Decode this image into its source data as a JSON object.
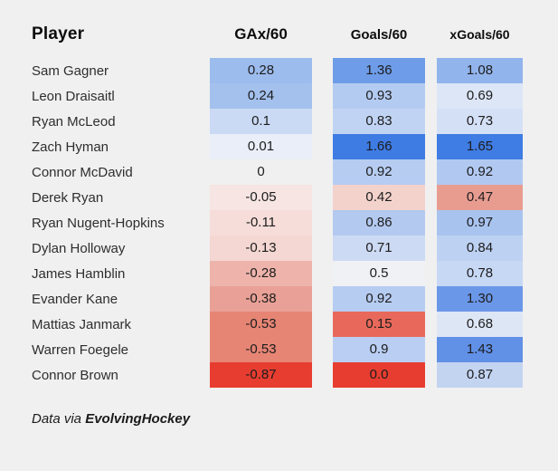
{
  "page": {
    "background": "#f0f0f0"
  },
  "header": {
    "player_label": "Player",
    "columns": [
      {
        "label": "GAx/60"
      },
      {
        "label": "Goals/60"
      },
      {
        "label": "xGoals/60"
      }
    ]
  },
  "footer": {
    "prefix": "Data via ",
    "source": "EvolvingHockey"
  },
  "chart_data": {
    "type": "table",
    "title": "",
    "columns": [
      "Player",
      "GAx/60",
      "Goals/60",
      "xGoals/60"
    ],
    "color_scale": {
      "style": "diverging red-white-blue heatmap per column",
      "strong_blue": "#3e7be3",
      "strong_red": "#e73d30",
      "neutral": "#f0f1f5"
    },
    "rows": [
      {
        "player": "Sam Gagner",
        "gax": {
          "value": "0.28",
          "color": "#9dbcee"
        },
        "goals": {
          "value": "1.36",
          "color": "#6e9ce8"
        },
        "xgoals": {
          "value": "1.08",
          "color": "#92b4ec"
        }
      },
      {
        "player": "Leon Draisaitl",
        "gax": {
          "value": "0.24",
          "color": "#a4c1ee"
        },
        "goals": {
          "value": "0.93",
          "color": "#b4cbf1"
        },
        "xgoals": {
          "value": "0.69",
          "color": "#dce6f7"
        }
      },
      {
        "player": "Ryan McLeod",
        "gax": {
          "value": "0.1",
          "color": "#cbdaf4"
        },
        "goals": {
          "value": "0.83",
          "color": "#c0d3f3"
        },
        "xgoals": {
          "value": "0.73",
          "color": "#d4e0f6"
        }
      },
      {
        "player": "Zach Hyman",
        "gax": {
          "value": "0.01",
          "color": "#e9eef8"
        },
        "goals": {
          "value": "1.66",
          "color": "#3e7be3"
        },
        "xgoals": {
          "value": "1.65",
          "color": "#3f7ce3"
        }
      },
      {
        "player": "Connor McDavid",
        "gax": {
          "value": "0",
          "color": "transparent"
        },
        "goals": {
          "value": "0.92",
          "color": "#b6ccf1"
        },
        "xgoals": {
          "value": "0.92",
          "color": "#b1c9f0"
        }
      },
      {
        "player": "Derek Ryan",
        "gax": {
          "value": "-0.05",
          "color": "#f6e5e2"
        },
        "goals": {
          "value": "0.42",
          "color": "#f3d2cc"
        },
        "xgoals": {
          "value": "0.47",
          "color": "#e89c90"
        }
      },
      {
        "player": "Ryan Nugent-Hopkins",
        "gax": {
          "value": "-0.11",
          "color": "#f6ddd9"
        },
        "goals": {
          "value": "0.86",
          "color": "#b3c9ef"
        },
        "xgoals": {
          "value": "0.97",
          "color": "#a9c3ef"
        }
      },
      {
        "player": "Dylan Holloway",
        "gax": {
          "value": "-0.13",
          "color": "#f4d7d2"
        },
        "goals": {
          "value": "0.71",
          "color": "#ccdaf3"
        },
        "xgoals": {
          "value": "0.84",
          "color": "#bdd1f2"
        }
      },
      {
        "player": "James Hamblin",
        "gax": {
          "value": "-0.28",
          "color": "#eeb4ab"
        },
        "goals": {
          "value": "0.5",
          "color": "#eff1f5"
        },
        "xgoals": {
          "value": "0.78",
          "color": "#c7d8f4"
        }
      },
      {
        "player": "Evander Kane",
        "gax": {
          "value": "-0.38",
          "color": "#e9a197"
        },
        "goals": {
          "value": "0.92",
          "color": "#b6ccf1"
        },
        "xgoals": {
          "value": "1.30",
          "color": "#6b97e8"
        }
      },
      {
        "player": "Mattias Janmark",
        "gax": {
          "value": "-0.53",
          "color": "#e78575"
        },
        "goals": {
          "value": "0.15",
          "color": "#e8695b"
        },
        "xgoals": {
          "value": "0.68",
          "color": "#dde6f5"
        }
      },
      {
        "player": "Warren Foegele",
        "gax": {
          "value": "-0.53",
          "color": "#e78575"
        },
        "goals": {
          "value": "0.9",
          "color": "#b9cef2"
        },
        "xgoals": {
          "value": "1.43",
          "color": "#6190e7"
        }
      },
      {
        "player": "Connor Brown",
        "gax": {
          "value": "-0.87",
          "color": "#e73d30"
        },
        "goals": {
          "value": "0.0",
          "color": "#e73d30"
        },
        "xgoals": {
          "value": "0.87",
          "color": "#c3d4f1"
        }
      }
    ]
  }
}
